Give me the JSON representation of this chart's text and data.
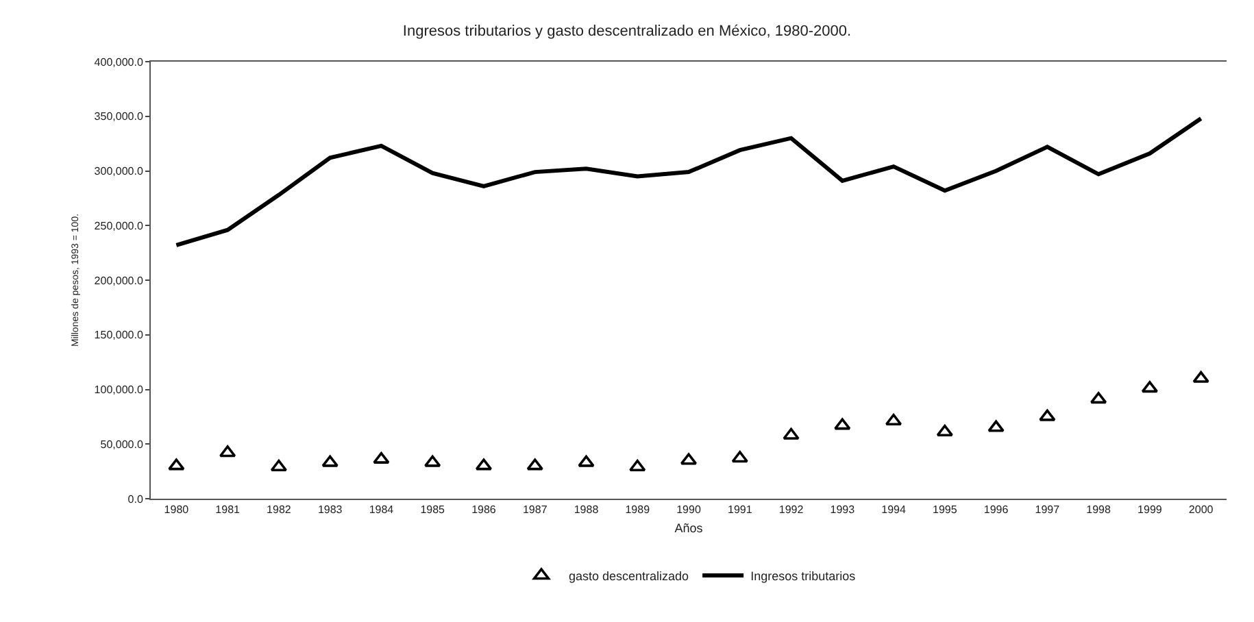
{
  "chart_data": {
    "type": "line",
    "title": "Ingresos tributarios y gasto descentralizado en México, 1980-2000.",
    "xlabel": "Años",
    "ylabel": "Millones de pesos, 1993 = 100.",
    "categories": [
      "1980",
      "1981",
      "1982",
      "1983",
      "1984",
      "1985",
      "1986",
      "1987",
      "1988",
      "1989",
      "1990",
      "1991",
      "1992",
      "1993",
      "1994",
      "1995",
      "1996",
      "1997",
      "1998",
      "1999",
      "2000"
    ],
    "series": [
      {
        "name": "gasto descentralizado",
        "type": "scatter",
        "marker": "triangle",
        "color": "#000000",
        "values": [
          30000,
          42000,
          29000,
          33000,
          36000,
          33000,
          30000,
          30000,
          33000,
          29000,
          35000,
          37000,
          58000,
          67000,
          71000,
          61000,
          65000,
          75000,
          91000,
          101000,
          110000
        ]
      },
      {
        "name": "Ingresos tributarios",
        "marker": "none",
        "color": "#000000",
        "values": [
          232000,
          246000,
          278000,
          312000,
          323000,
          298000,
          286000,
          299000,
          302000,
          295000,
          299000,
          319000,
          330000,
          291000,
          304000,
          282000,
          300000,
          322000,
          297000,
          316000,
          348000
        ]
      }
    ],
    "ylim": [
      0,
      400000
    ],
    "yticks": [
      {
        "value": 0,
        "label": "0.0"
      },
      {
        "value": 50000,
        "label": "50,000.0"
      },
      {
        "value": 100000,
        "label": "100,000.0"
      },
      {
        "value": 150000,
        "label": "150,000.0"
      },
      {
        "value": 200000,
        "label": "200,000.0"
      },
      {
        "value": 250000,
        "label": "250,000.0"
      },
      {
        "value": 300000,
        "label": "300,000.0"
      },
      {
        "value": 350000,
        "label": "350,000.0"
      },
      {
        "value": 400000,
        "label": "400,000.0"
      }
    ],
    "grid": false,
    "legend": "bottom",
    "line_style": "solid"
  }
}
